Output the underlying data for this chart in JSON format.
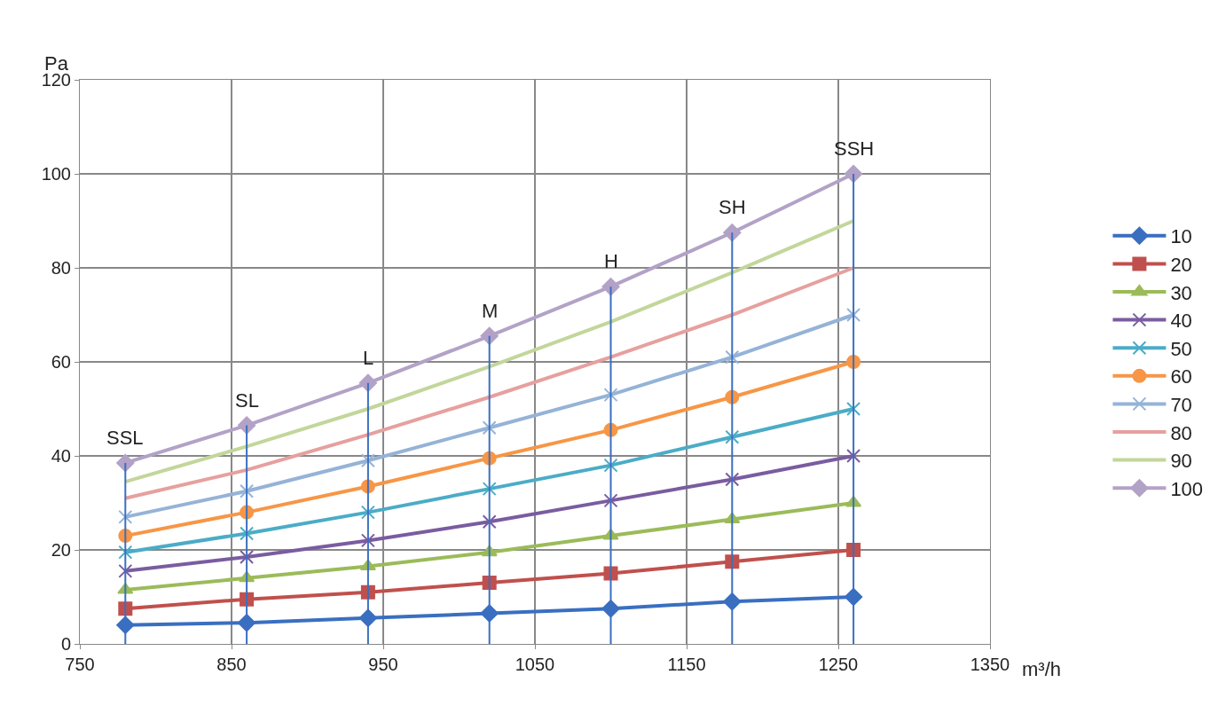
{
  "chart_data": {
    "type": "line",
    "xlabel": "m³/h",
    "ylabel": "Pa",
    "x": [
      780,
      860,
      940,
      1020,
      1100,
      1180,
      1260
    ],
    "series": [
      {
        "name": "10",
        "color": "#3a6fc0",
        "marker": "diamond",
        "values": [
          4,
          4.5,
          5.5,
          6.5,
          7.5,
          9,
          10
        ]
      },
      {
        "name": "20",
        "color": "#c0504d",
        "marker": "square",
        "values": [
          7.5,
          9.5,
          11,
          13,
          15,
          17.5,
          20
        ]
      },
      {
        "name": "30",
        "color": "#9bbb59",
        "marker": "triangle",
        "values": [
          11.5,
          14,
          16.5,
          19.5,
          23,
          26.5,
          30
        ]
      },
      {
        "name": "40",
        "color": "#7a5ca0",
        "marker": "cross",
        "values": [
          15.5,
          18.5,
          22,
          26,
          30.5,
          35,
          40
        ]
      },
      {
        "name": "50",
        "color": "#4bacc6",
        "marker": "cross",
        "values": [
          19.5,
          23.5,
          28,
          33,
          38,
          44,
          50
        ]
      },
      {
        "name": "60",
        "color": "#f79646",
        "marker": "circle",
        "values": [
          23,
          28,
          33.5,
          39.5,
          45.5,
          52.5,
          60
        ]
      },
      {
        "name": "70",
        "color": "#95b3d7",
        "marker": "cross",
        "values": [
          27,
          32.5,
          39,
          46,
          53,
          61,
          70
        ]
      },
      {
        "name": "80",
        "color": "#e6a09e",
        "marker": "none",
        "values": [
          31,
          37,
          44.5,
          52.5,
          61,
          70,
          80
        ]
      },
      {
        "name": "90",
        "color": "#c3d69b",
        "marker": "none",
        "values": [
          34.5,
          42,
          50,
          59,
          68.5,
          79,
          90
        ]
      },
      {
        "name": "100",
        "color": "#b3a2c7",
        "marker": "diamond",
        "values": [
          38.5,
          46.5,
          55.5,
          65.5,
          76,
          87.5,
          100
        ]
      },
      {
        "color": "#3a6fc0",
        "marker": "none",
        "x": [
          780,
          780
        ],
        "values": [
          0,
          38.5
        ]
      },
      {
        "color": "#3a6fc0",
        "marker": "none",
        "x": [
          860,
          860
        ],
        "values": [
          0,
          46.5
        ]
      },
      {
        "color": "#3a6fc0",
        "marker": "none",
        "x": [
          940,
          940
        ],
        "values": [
          0,
          55.5
        ]
      },
      {
        "color": "#3a6fc0",
        "marker": "none",
        "x": [
          1020,
          1020
        ],
        "values": [
          0,
          65.5
        ]
      },
      {
        "color": "#3a6fc0",
        "marker": "none",
        "x": [
          1100,
          1100
        ],
        "values": [
          0,
          76
        ]
      },
      {
        "color": "#3a6fc0",
        "marker": "none",
        "x": [
          1180,
          1180
        ],
        "values": [
          0,
          87.5
        ]
      },
      {
        "color": "#3a6fc0",
        "marker": "none",
        "x": [
          1260,
          1260
        ],
        "values": [
          0,
          100
        ]
      }
    ],
    "xlim": [
      750,
      1350
    ],
    "xticks": [
      750,
      850,
      950,
      1050,
      1150,
      1250,
      1350
    ],
    "ylim": [
      0,
      120
    ],
    "yticks": [
      0,
      20,
      40,
      60,
      80,
      100,
      120
    ],
    "grid": true,
    "legend": "right",
    "annotations": [
      {
        "text": "SSL",
        "x": 780,
        "y": 38.5
      },
      {
        "text": "SL",
        "x": 860,
        "y": 46.5
      },
      {
        "text": "L",
        "x": 940,
        "y": 55.5
      },
      {
        "text": "M",
        "x": 1020,
        "y": 65.5
      },
      {
        "text": "H",
        "x": 1100,
        "y": 76
      },
      {
        "text": "SH",
        "x": 1180,
        "y": 87.5
      },
      {
        "text": "SSH",
        "x": 1260,
        "y": 100
      }
    ]
  }
}
